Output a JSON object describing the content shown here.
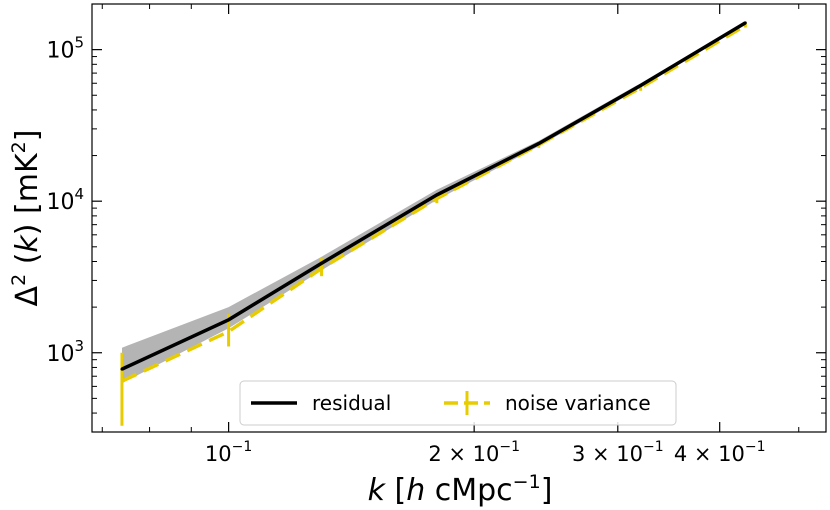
{
  "chart_data": {
    "type": "line",
    "xscale": "log",
    "yscale": "log",
    "xlim": [
      0.068,
      0.54
    ],
    "ylim": [
      300,
      200000
    ],
    "xlabel": {
      "k": "k",
      "open": " [",
      "h": "h",
      "unit": " cMpc",
      "sup": "−1",
      "close": "]"
    },
    "ylabel": {
      "delta": "Δ",
      "sup": "2",
      "open": " (",
      "k": "k",
      "close": ") [mK",
      "sup2": "2",
      "end": "]"
    },
    "x_ticks": [
      {
        "value": 0.1,
        "mant": "",
        "exp": "−1"
      },
      {
        "value": 0.2,
        "mant": "2 × ",
        "exp": "−1"
      },
      {
        "value": 0.3,
        "mant": "3 × ",
        "exp": "−1"
      },
      {
        "value": 0.4,
        "mant": "4 × ",
        "exp": "−1"
      }
    ],
    "y_ticks": [
      {
        "value": 1000,
        "exp": "3"
      },
      {
        "value": 10000,
        "exp": "4"
      },
      {
        "value": 100000,
        "exp": "5"
      }
    ],
    "colors": {
      "residual": "#000000",
      "noise": "#e6cc00",
      "band": "#b4b4b4"
    },
    "series": [
      {
        "name": "residual",
        "style": "solid",
        "x": [
          0.074,
          0.1,
          0.13,
          0.18,
          0.24,
          0.32,
          0.43
        ],
        "y": [
          780,
          1650,
          3900,
          11000,
          24000,
          58000,
          150000
        ],
        "band_low": [
          630,
          1450,
          3500,
          10200,
          23000,
          56000,
          147000
        ],
        "band_high": [
          1080,
          2000,
          4300,
          11900,
          25000,
          60000,
          153000
        ]
      },
      {
        "name": "noise variance",
        "style": "dashed",
        "x": [
          0.074,
          0.1,
          0.13,
          0.18,
          0.24,
          0.32,
          0.43
        ],
        "y": [
          650,
          1380,
          3600,
          10400,
          23500,
          56000,
          144000
        ],
        "err_low": [
          330,
          1100,
          3200,
          9700,
          22500,
          53500,
          140000
        ],
        "err_high": [
          1000,
          1800,
          4200,
          11200,
          24800,
          59000,
          149000
        ]
      }
    ],
    "legend": {
      "placement": "lower-center"
    }
  }
}
